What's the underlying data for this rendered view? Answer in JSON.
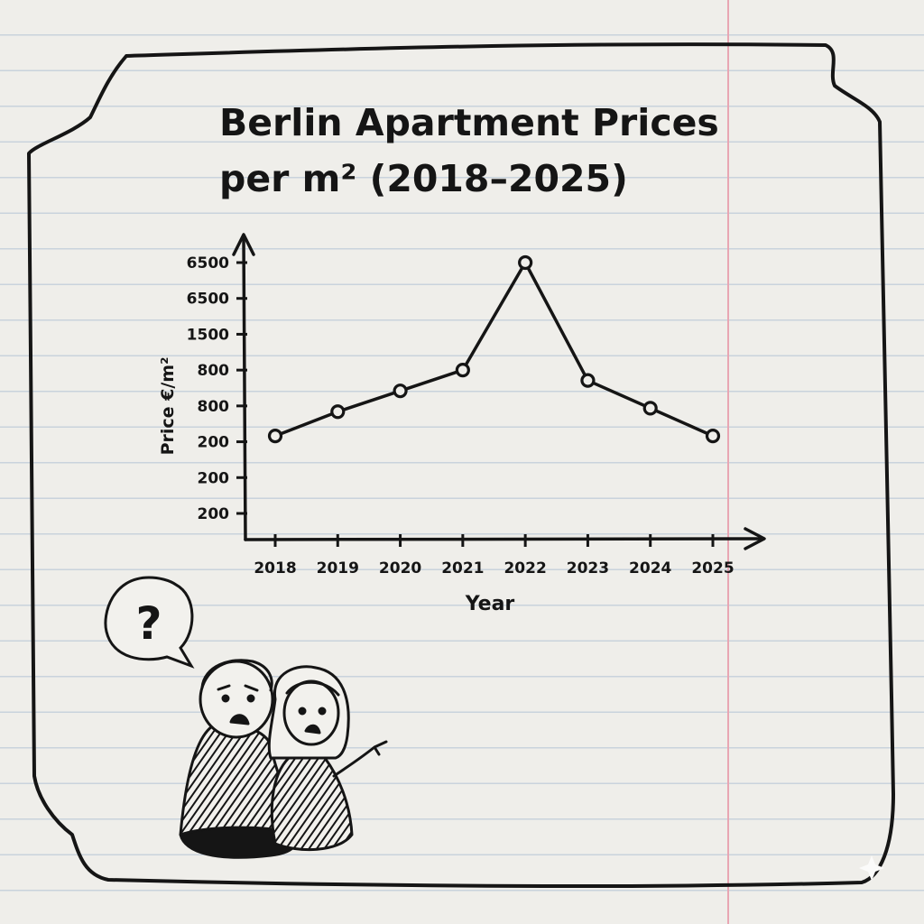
{
  "chart_data": {
    "type": "line",
    "title_line1": "Berlin Apartment Prices",
    "title_line2": "per m² (2018–2025)",
    "xlabel": "Year",
    "ylabel": "Price €/m²",
    "x": [
      "2018",
      "2019",
      "2020",
      "2021",
      "2022",
      "2023",
      "2024",
      "2025"
    ],
    "y_tick_labels": [
      "6500",
      "6500",
      "1500",
      "800",
      "800",
      "200",
      "200",
      "200"
    ],
    "values": [
      200,
      270,
      330,
      390,
      700,
      360,
      280,
      200
    ],
    "ylim": [
      0,
      700
    ],
    "grid": false,
    "legend": "none",
    "line_color": "#151515"
  },
  "decoration": {
    "speech_bubble_text": "?"
  },
  "colors": {
    "paper": "#efeeea",
    "ruled_lines": "#c9d3dc",
    "margin_line": "#e8a6b3",
    "ink": "#151515"
  }
}
